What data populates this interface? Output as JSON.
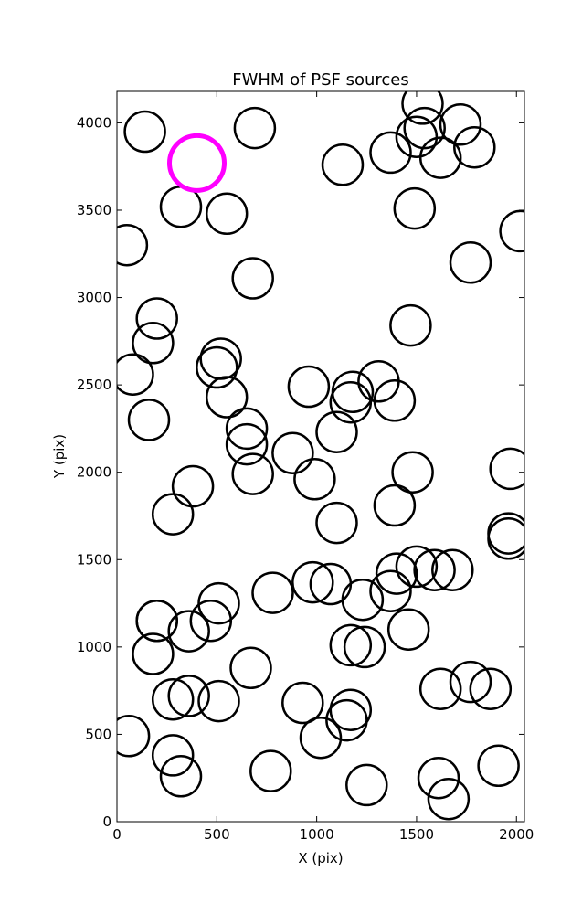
{
  "chart_data": {
    "type": "scatter",
    "title": "FWHM of PSF sources",
    "xlabel": "X (pix)",
    "ylabel": "Y (pix)",
    "xlim": [
      0,
      2040
    ],
    "ylim": [
      0,
      4180
    ],
    "xticks": [
      0,
      500,
      1000,
      1500,
      2000
    ],
    "yticks": [
      0,
      500,
      1000,
      1500,
      2000,
      2500,
      3000,
      3500,
      4000
    ],
    "grid": false,
    "marker": "open-circle",
    "colors": {
      "source": "#000000",
      "highlight": "#ff00ff",
      "axes": "#000000",
      "background": "#ffffff"
    },
    "series": [
      {
        "role": "sources",
        "points": [
          [
            140,
            3950
          ],
          [
            690,
            3970
          ],
          [
            320,
            3520
          ],
          [
            550,
            3480
          ],
          [
            50,
            3300
          ],
          [
            680,
            3110
          ],
          [
            1130,
            3760
          ],
          [
            1370,
            3830
          ],
          [
            1490,
            3510
          ],
          [
            1500,
            3920
          ],
          [
            1540,
            3970
          ],
          [
            1530,
            4110
          ],
          [
            1620,
            3800
          ],
          [
            1720,
            3990
          ],
          [
            1790,
            3860
          ],
          [
            1770,
            3200
          ],
          [
            2020,
            3380
          ],
          [
            200,
            2880
          ],
          [
            180,
            2740
          ],
          [
            80,
            2560
          ],
          [
            160,
            2300
          ],
          [
            520,
            2650
          ],
          [
            500,
            2600
          ],
          [
            550,
            2430
          ],
          [
            650,
            2250
          ],
          [
            650,
            2160
          ],
          [
            680,
            1990
          ],
          [
            960,
            2490
          ],
          [
            1170,
            2400
          ],
          [
            1180,
            2460
          ],
          [
            1310,
            2520
          ],
          [
            1390,
            2410
          ],
          [
            1100,
            2230
          ],
          [
            1470,
            2840
          ],
          [
            880,
            2110
          ],
          [
            990,
            1960
          ],
          [
            1480,
            2000
          ],
          [
            1970,
            2020
          ],
          [
            380,
            1920
          ],
          [
            280,
            1760
          ],
          [
            1100,
            1710
          ],
          [
            1390,
            1810
          ],
          [
            1960,
            1650
          ],
          [
            1960,
            1620
          ],
          [
            200,
            1150
          ],
          [
            200,
            1150
          ],
          [
            180,
            960
          ],
          [
            360,
            1090
          ],
          [
            470,
            1150
          ],
          [
            510,
            1250
          ],
          [
            780,
            1310
          ],
          [
            980,
            1370
          ],
          [
            1070,
            1360
          ],
          [
            1230,
            1270
          ],
          [
            1370,
            1320
          ],
          [
            1400,
            1420
          ],
          [
            1500,
            1460
          ],
          [
            1590,
            1440
          ],
          [
            1680,
            1440
          ],
          [
            1170,
            1010
          ],
          [
            1240,
            1000
          ],
          [
            1460,
            1100
          ],
          [
            670,
            880
          ],
          [
            280,
            700
          ],
          [
            360,
            720
          ],
          [
            510,
            690
          ],
          [
            930,
            680
          ],
          [
            1170,
            640
          ],
          [
            1150,
            580
          ],
          [
            1020,
            480
          ],
          [
            60,
            490
          ],
          [
            280,
            380
          ],
          [
            320,
            260
          ],
          [
            770,
            290
          ],
          [
            1250,
            210
          ],
          [
            1620,
            760
          ],
          [
            1770,
            800
          ],
          [
            1870,
            760
          ],
          [
            1910,
            320
          ],
          [
            1610,
            250
          ],
          [
            1660,
            130
          ]
        ]
      },
      {
        "role": "highlighted",
        "points": [
          [
            400,
            3770
          ]
        ]
      }
    ]
  }
}
